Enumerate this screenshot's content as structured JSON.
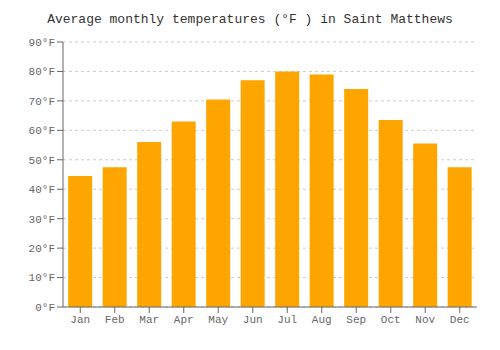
{
  "chart_data": {
    "type": "bar",
    "title": "Average monthly temperatures (°F ) in Saint Matthews",
    "categories": [
      "Jan",
      "Feb",
      "Mar",
      "Apr",
      "May",
      "Jun",
      "Jul",
      "Aug",
      "Sep",
      "Oct",
      "Nov",
      "Dec"
    ],
    "values": [
      44.5,
      47.5,
      56.0,
      63.0,
      70.5,
      77.0,
      80.0,
      79.0,
      74.0,
      63.5,
      55.5,
      47.5
    ],
    "color": "#FFA500",
    "ylim": [
      0,
      90
    ],
    "yticks": [
      {
        "value": 0,
        "label": "0°F"
      },
      {
        "value": 10,
        "label": "10°F"
      },
      {
        "value": 20,
        "label": "20°F"
      },
      {
        "value": 30,
        "label": "30°F"
      },
      {
        "value": 40,
        "label": "40°F"
      },
      {
        "value": 50,
        "label": "50°F"
      },
      {
        "value": 60,
        "label": "60°F"
      },
      {
        "value": 70,
        "label": "70°F"
      },
      {
        "value": 80,
        "label": "80°F"
      },
      {
        "value": 90,
        "label": "90°F"
      }
    ],
    "grid": true
  }
}
